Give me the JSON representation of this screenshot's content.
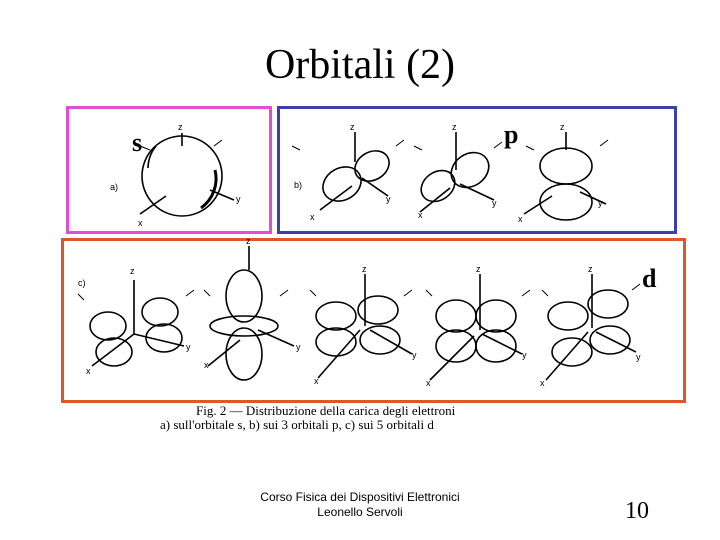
{
  "slide": {
    "title": "Orbitali (2)",
    "labels": {
      "s": "s",
      "p": "p",
      "d": "d"
    },
    "figure": {
      "panel_a": "a)",
      "panel_b": "b)",
      "panel_c": "c)",
      "axis_x": "x",
      "axis_y": "y",
      "axis_z": "z"
    },
    "caption": {
      "line1": "Fig. 2 — Distribuzione della carica degli elettroni",
      "line2": "a) sull'orbitale s, b) sui 3 orbitali p, c) sui 5 orbitali d"
    },
    "footer": {
      "line1": "Corso Fisica dei Dispositivi Elettronici",
      "line2": "Leonello Servoli"
    },
    "page_number": "10"
  }
}
